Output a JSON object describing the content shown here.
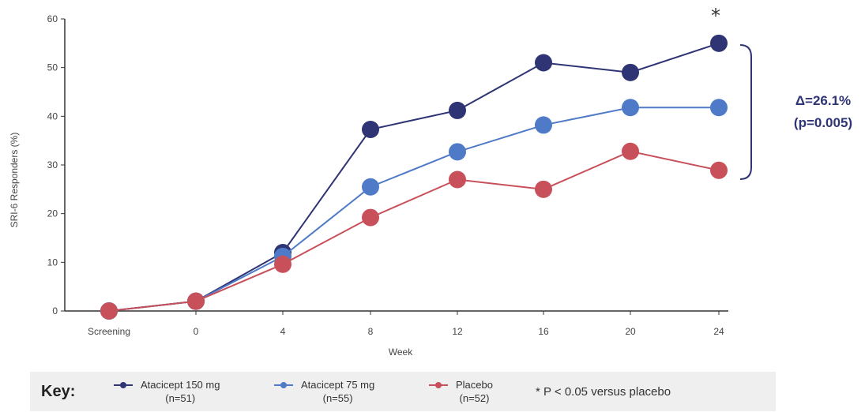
{
  "chart_data": {
    "type": "line",
    "categories": [
      "Screening",
      "0",
      "4",
      "8",
      "12",
      "16",
      "20",
      "24"
    ],
    "xlabel": "Week",
    "ylabel": "SRI-6 Responders (%)",
    "ylim": [
      0,
      60
    ],
    "yticks": [
      0,
      10,
      20,
      30,
      40,
      50,
      60
    ],
    "grid": false,
    "series": [
      {
        "name": "Atacicept 150 mg",
        "color": "#2e3474",
        "values": [
          0,
          2,
          12,
          37.3,
          41.2,
          51,
          49,
          55
        ]
      },
      {
        "name": "Atacicept 75 mg",
        "color": "#4f7ac7",
        "values": [
          0,
          2,
          11.2,
          25.5,
          32.7,
          38.2,
          41.8,
          41.8
        ]
      },
      {
        "name": "Placebo",
        "color": "#c8505a",
        "values": [
          0,
          2,
          9.6,
          19.2,
          27,
          25,
          32.8,
          28.9
        ]
      }
    ],
    "annotations": {
      "star": "*",
      "delta": "Δ=26.1%",
      "pvalue": "(p=0.005)"
    }
  },
  "key": {
    "title": "Key:",
    "items": [
      {
        "name": "Atacicept 150 mg",
        "n": "(n=51)",
        "color": "#2e3474"
      },
      {
        "name": "Atacicept 75 mg",
        "n": "(n=55)",
        "color": "#4f7ac7"
      },
      {
        "name": "Placebo",
        "n": "(n=52)",
        "color": "#c8505a"
      }
    ],
    "note": "* P < 0.05 versus placebo"
  }
}
